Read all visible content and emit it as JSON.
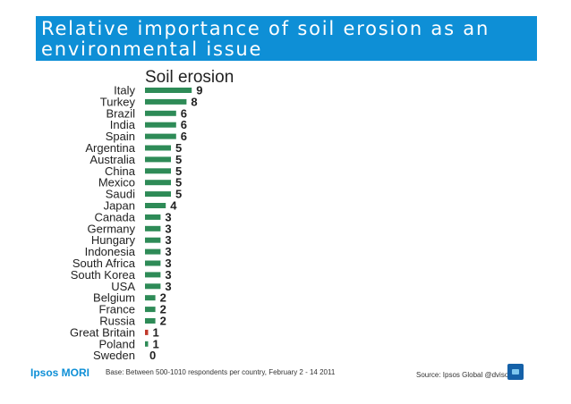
{
  "title": "Relative importance of soil erosion as an environmental issue",
  "footer": {
    "logo": "Ipsos MORI",
    "base": "Base: Between 500-1010 respondents per country, February 2 - 14 2011",
    "source": "Source: Ipsos Global @dvisor"
  },
  "colors": {
    "title_band": "#0e8fd6",
    "bar": "#2e8b57",
    "highlight_bar": "#c0392b"
  },
  "chart_data": {
    "type": "bar",
    "orientation": "horizontal",
    "title": "Soil erosion",
    "categories": [
      "Italy",
      "Turkey",
      "Brazil",
      "India",
      "Spain",
      "Argentina",
      "Australia",
      "China",
      "Mexico",
      "Saudi",
      "Japan",
      "Canada",
      "Germany",
      "Hungary",
      "Indonesia",
      "South Africa",
      "South Korea",
      "USA",
      "Belgium",
      "France",
      "Russia",
      "Great Britain",
      "Poland",
      "Sweden"
    ],
    "values": [
      9,
      8,
      6,
      6,
      6,
      5,
      5,
      5,
      5,
      5,
      4,
      3,
      3,
      3,
      3,
      3,
      3,
      3,
      2,
      2,
      2,
      1,
      1,
      0
    ],
    "highlight": "Great Britain",
    "xlim": [
      0,
      9
    ],
    "grid": false,
    "legend": "none"
  }
}
